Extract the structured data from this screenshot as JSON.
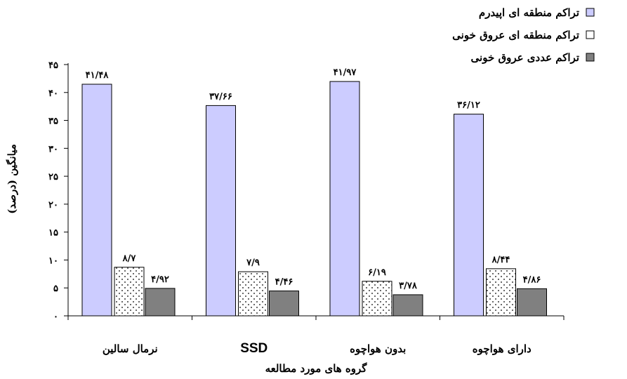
{
  "chart_data": {
    "type": "bar",
    "categories": [
      "نرمال سالین",
      "SSD",
      "بدون هواچوه",
      "دارای هواچوه"
    ],
    "series": [
      {
        "name": "تراکم منطقه ای اپیدرم",
        "values": [
          41.48,
          37.66,
          41.97,
          36.12
        ],
        "labels": [
          "۴۱/۴۸",
          "۳۷/۶۶",
          "۴۱/۹۷",
          "۳۶/۱۲"
        ],
        "color": "#ccccff",
        "pattern": "solid"
      },
      {
        "name": "تراکم منطقه ای عروق خونی",
        "values": [
          8.7,
          7.9,
          6.19,
          8.44
        ],
        "labels": [
          "۸/۷",
          "۷/۹",
          "۶/۱۹",
          "۸/۴۴"
        ],
        "color": "#ffffff",
        "pattern": "dots"
      },
      {
        "name": "تراکم عددی عروق خونی",
        "values": [
          4.92,
          4.46,
          3.78,
          4.86
        ],
        "labels": [
          "۴/۹۲",
          "۴/۴۶",
          "۳/۷۸",
          "۴/۸۶"
        ],
        "color": "#808080",
        "pattern": "solid"
      }
    ],
    "yticks": [
      0,
      5,
      10,
      15,
      20,
      25,
      30,
      35,
      40,
      45
    ],
    "ytick_labels": [
      "۰",
      "۵",
      "۱۰",
      "۱۵",
      "۲۰",
      "۲۵",
      "۳۰",
      "۳۵",
      "۴۰",
      "۴۵"
    ],
    "ylim": [
      0,
      45
    ],
    "xlabel": "گروه های مورد مطالعه",
    "ylabel": "میانگین (درصد)",
    "legend_position": "top-right",
    "grid": false
  }
}
